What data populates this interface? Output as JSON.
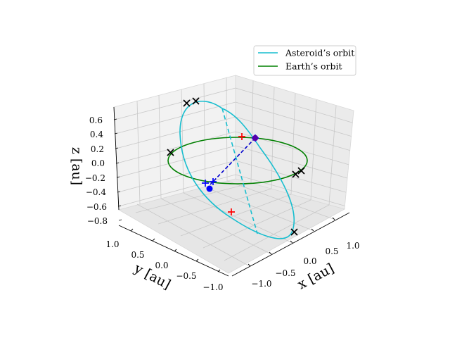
{
  "chart_data": {
    "type": "line3d",
    "axes": {
      "x": {
        "label": "x [au]",
        "ticks": [
          "−1.0",
          "−0.5",
          "0.0",
          "0.5",
          "1.0"
        ],
        "range": [
          -1.15,
          1.15
        ]
      },
      "y": {
        "label": "y [au]",
        "ticks": [
          "−1.0",
          "−0.5",
          "0.0",
          "0.5",
          "1.0"
        ],
        "range": [
          -1.15,
          1.15
        ]
      },
      "z": {
        "label": "z [au]",
        "ticks": [
          "−0.8",
          "−0.6",
          "−0.4",
          "−0.2",
          "0.0",
          "0.2",
          "0.4",
          "0.6"
        ],
        "range": [
          -0.85,
          0.7
        ]
      }
    },
    "grid": true,
    "legend": {
      "position": "top-right",
      "entries": [
        {
          "name": "Asteroid’s orbit",
          "color": "#17becf"
        },
        {
          "name": "Earth’s orbit",
          "color": "#008000"
        }
      ]
    },
    "colors": {
      "asteroid": "#17becf",
      "earth": "#008000",
      "connector": "#0000cc",
      "x_markers": "#000000",
      "plus_red": "#ff0000",
      "plus_blue": "#0000ff",
      "dot": "#0000ff",
      "dot_earth": "#5500aa"
    }
  }
}
